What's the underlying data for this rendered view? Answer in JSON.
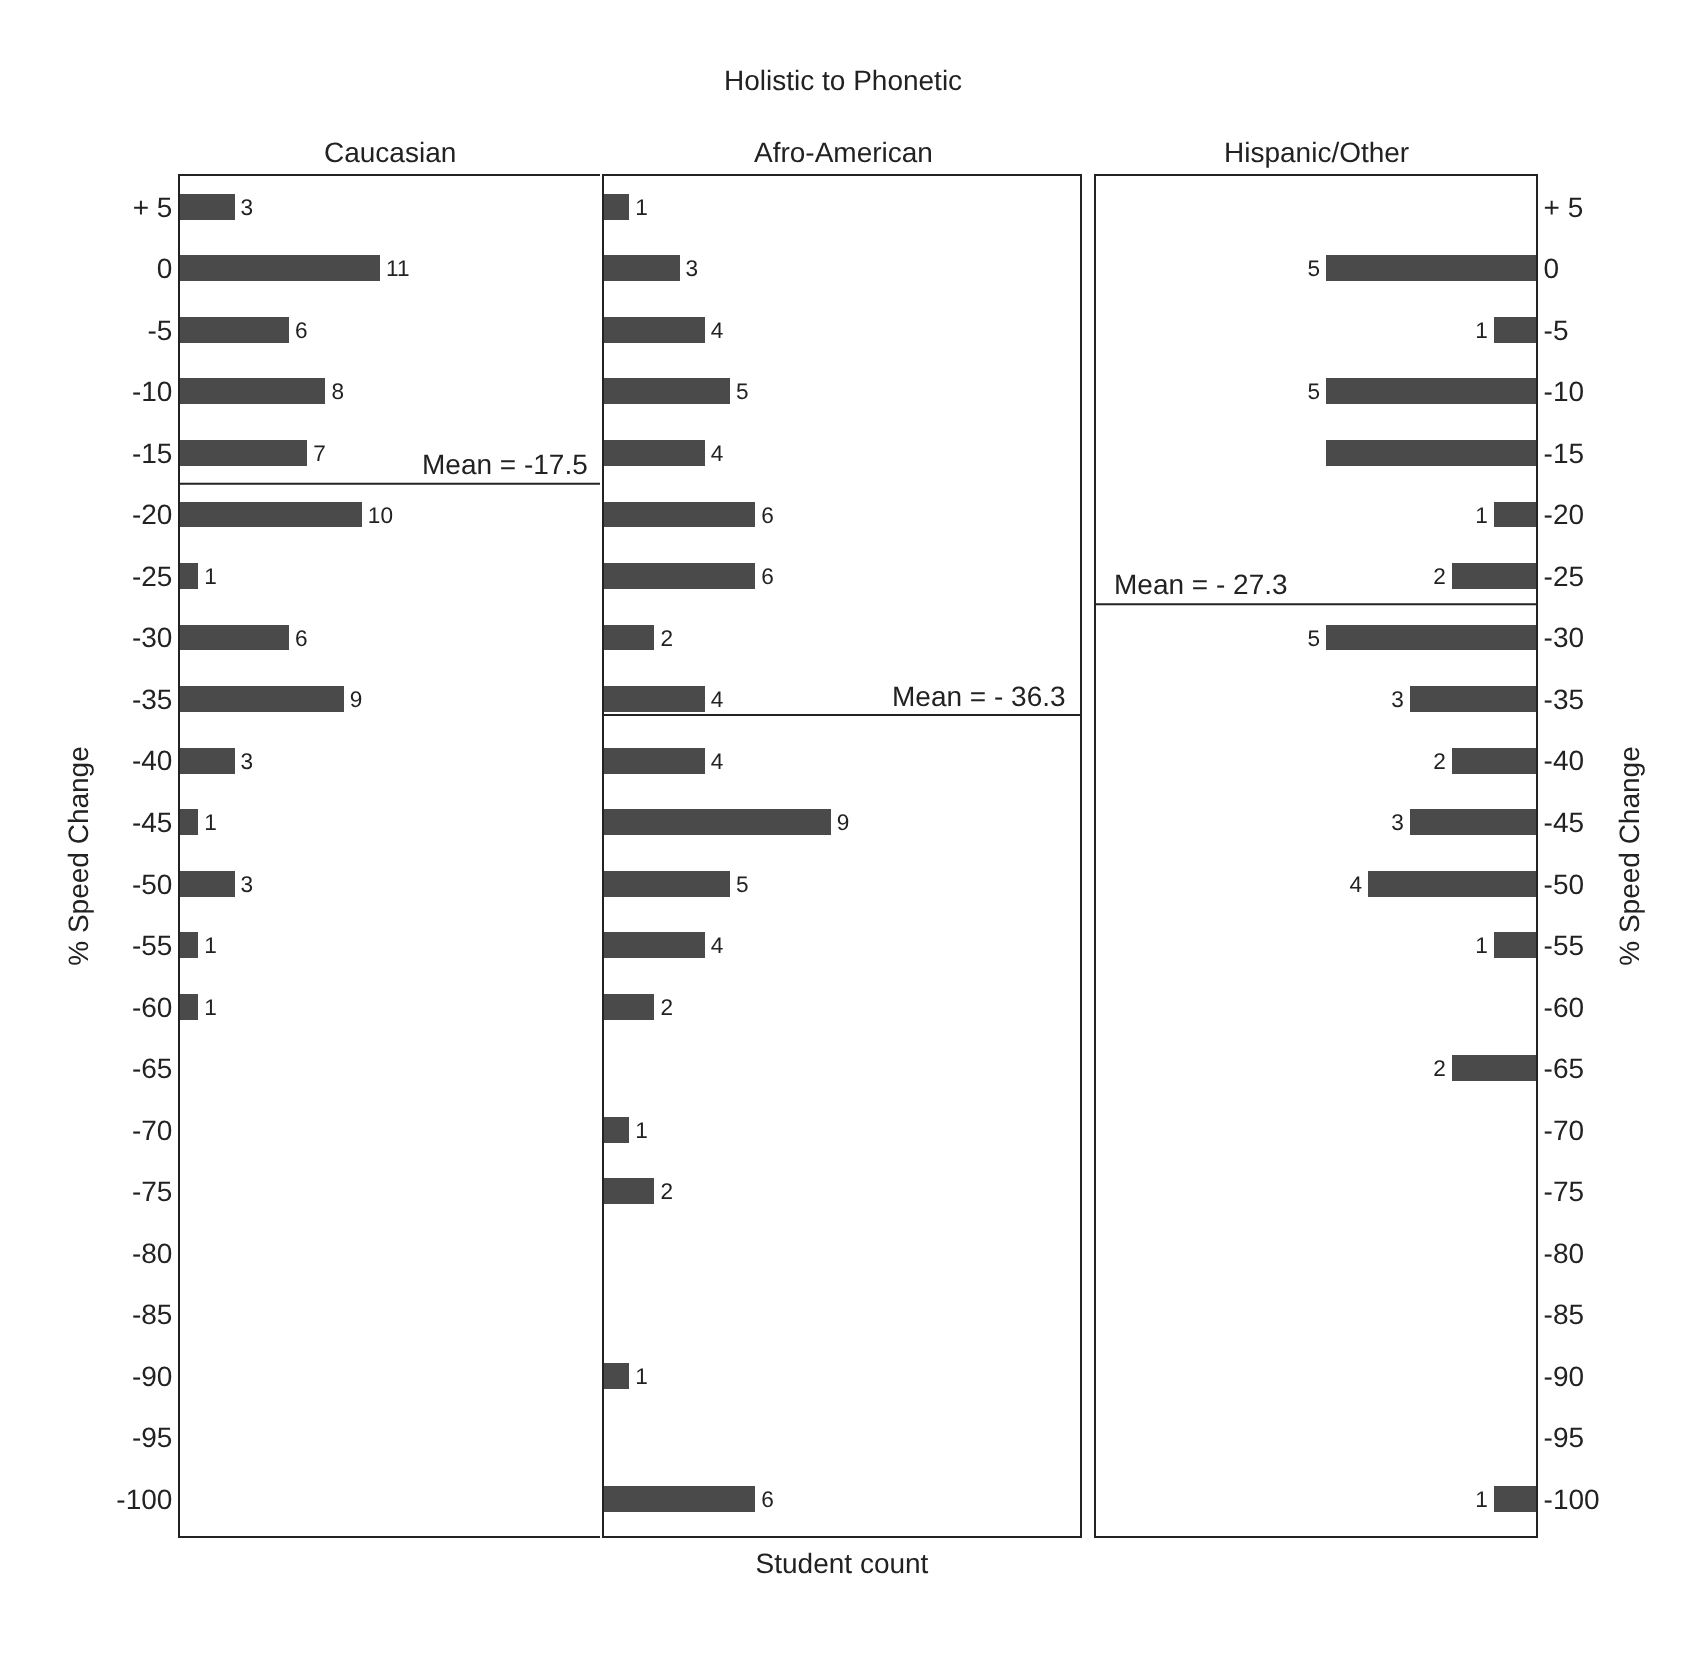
{
  "chart_data": [
    {
      "type": "bar",
      "orientation": "horizontal",
      "title": "Caucasian",
      "ylabel": "% Speed Change",
      "color": "#4a4a4a",
      "data_labels": true,
      "grid": false,
      "tick_labels": "y",
      "x": [
        5,
        0,
        -5,
        -10,
        -15,
        -20,
        -25,
        -30,
        -35,
        -40,
        -45,
        -50,
        -55,
        -60
      ],
      "values": [
        3,
        11,
        6,
        8,
        7,
        10,
        1,
        6,
        9,
        3,
        1,
        3,
        1,
        1
      ],
      "ylim": [
        -103,
        7.5
      ],
      "yticks": [
        {
          "value": 5,
          "label": "+ 5"
        },
        0,
        -5,
        -10,
        -15,
        -20,
        -25,
        -30,
        -35,
        -40,
        -45,
        -50,
        -55,
        -60,
        -65,
        -70,
        -75,
        -80,
        -85,
        -90,
        -95,
        -100
      ],
      "ref_lines": [
        {
          "axis": "y",
          "value": -17.5,
          "label": "Mean = -17.5"
        }
      ]
    },
    {
      "type": "bar",
      "orientation": "horizontal",
      "title": "Holistic to Phonetic",
      "subtitle": "Afro-American",
      "xlabel": "Student count",
      "color": "#4a4a4a",
      "data_labels": true,
      "grid": false,
      "tick_labels": false,
      "x": [
        5,
        0,
        -5,
        -10,
        -15,
        -20,
        -25,
        -30,
        -35,
        -40,
        -45,
        -50,
        -55,
        -60,
        -65,
        -70,
        -75,
        -80,
        -85,
        -90,
        -95,
        -100
      ],
      "values": [
        1,
        3,
        4,
        5,
        4,
        6,
        6,
        2,
        4,
        4,
        9,
        5,
        4,
        2,
        null,
        1,
        2,
        null,
        null,
        1,
        null,
        6
      ],
      "ylim": [
        -103,
        7.5
      ],
      "yticks": [
        5,
        0,
        -5,
        -10,
        -15,
        -20,
        -25,
        -30,
        -35,
        -40,
        -45,
        -50,
        -55,
        -60,
        -65,
        -70,
        -75,
        -80,
        -85,
        -90,
        -95,
        -100
      ],
      "ref_lines": [
        {
          "axis": "y",
          "value": -36.3,
          "label": "Mean = - 36.3"
        }
      ]
    },
    {
      "type": "bar",
      "orientation": "horizontal",
      "title": "Hispanic/Other",
      "ylabel": "% Speed Change",
      "color": "#4a4a4a",
      "grid": false,
      "tick_labels": "y",
      "x": [
        0,
        -5,
        -10,
        -15,
        -20,
        -25,
        -30,
        -35,
        -40,
        -45,
        -50,
        -55,
        -60,
        -65,
        -70,
        -75,
        -80,
        -85,
        -90,
        -95,
        -100
      ],
      "values": [
        5,
        1,
        5,
        5,
        1,
        2,
        5,
        3,
        2,
        3,
        4,
        1,
        null,
        2,
        null,
        null,
        null,
        null,
        null,
        null,
        1
      ],
      "value_labels": [
        "5",
        "1",
        "5",
        null,
        "1",
        "2",
        "5",
        "3",
        "2",
        "3",
        "4",
        "1",
        null,
        "2",
        null,
        null,
        null,
        null,
        null,
        null,
        "1"
      ],
      "ylim": [
        -103,
        7.5
      ],
      "yticks": [
        {
          "value": 5,
          "label": "+ 5"
        },
        0,
        -5,
        -10,
        -15,
        -20,
        -25,
        -30,
        -35,
        -40,
        -45,
        -50,
        -55,
        -60,
        -65,
        -70,
        -75,
        -80,
        -85,
        -90,
        -95,
        -100
      ],
      "ref_lines": [
        {
          "axis": "y",
          "value": -27.3,
          "label": "Mean = - 27.3"
        }
      ]
    }
  ]
}
